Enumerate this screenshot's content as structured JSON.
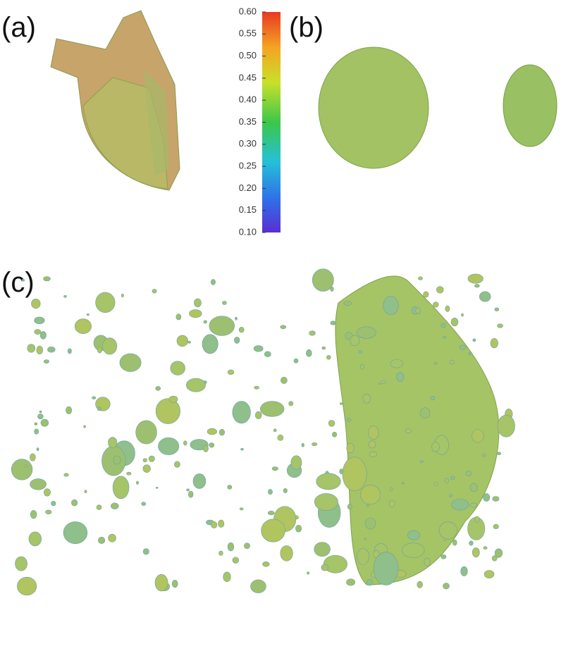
{
  "panels": [
    {
      "label": "(a)"
    },
    {
      "label": "(b)"
    },
    {
      "label": "(c)"
    }
  ],
  "colorbar": {
    "lim": [
      0.1,
      0.6
    ],
    "ticks": [
      {
        "value": 0.6,
        "label": "0.60"
      },
      {
        "value": 0.55,
        "label": "0.55"
      },
      {
        "value": 0.5,
        "label": "0.50"
      },
      {
        "value": 0.45,
        "label": "0.45"
      },
      {
        "value": 0.4,
        "label": "0.40"
      },
      {
        "value": 0.35,
        "label": "0.35"
      },
      {
        "value": 0.3,
        "label": "0.30"
      },
      {
        "value": 0.25,
        "label": "0.25"
      },
      {
        "value": 0.2,
        "label": "0.20"
      },
      {
        "value": 0.15,
        "label": "0.15"
      },
      {
        "value": 0.1,
        "label": "0.10"
      }
    ]
  }
}
